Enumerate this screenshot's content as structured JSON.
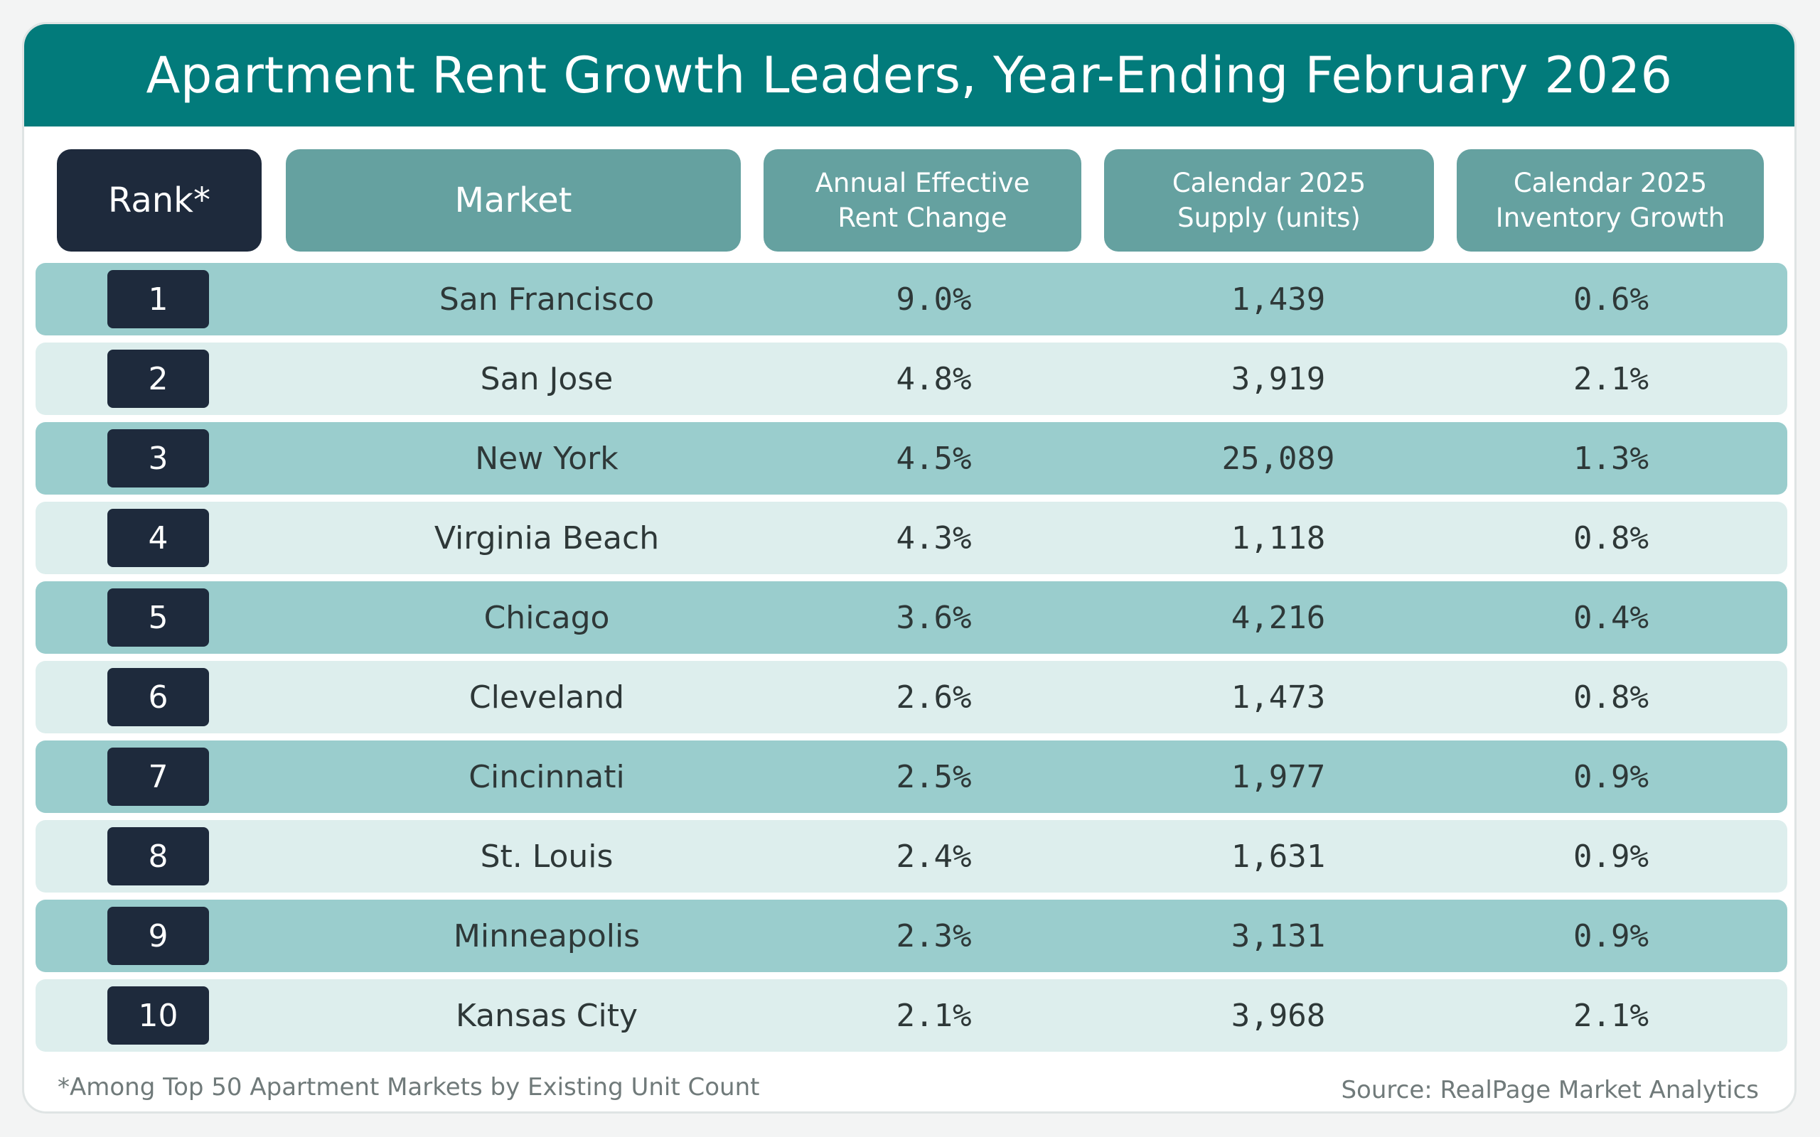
{
  "title": "Apartment Rent Growth Leaders, Year-Ending February 2026",
  "columns": {
    "rank": "Rank*",
    "market": "Market",
    "rent_change": "Annual Effective\nRent Change",
    "supply": "Calendar 2025\nSupply (units)",
    "inventory": "Calendar 2025\nInventory Growth"
  },
  "rows": [
    {
      "rank": "1",
      "market": "San Francisco",
      "rent_change": "9.0%",
      "supply": "1,439",
      "inventory": "0.6%"
    },
    {
      "rank": "2",
      "market": "San Jose",
      "rent_change": "4.8%",
      "supply": "3,919",
      "inventory": "2.1%"
    },
    {
      "rank": "3",
      "market": "New York",
      "rent_change": "4.5%",
      "supply": "25,089",
      "inventory": "1.3%"
    },
    {
      "rank": "4",
      "market": "Virginia Beach",
      "rent_change": "4.3%",
      "supply": "1,118",
      "inventory": "0.8%"
    },
    {
      "rank": "5",
      "market": "Chicago",
      "rent_change": "3.6%",
      "supply": "4,216",
      "inventory": "0.4%"
    },
    {
      "rank": "6",
      "market": "Cleveland",
      "rent_change": "2.6%",
      "supply": "1,473",
      "inventory": "0.8%"
    },
    {
      "rank": "7",
      "market": "Cincinnati",
      "rent_change": "2.5%",
      "supply": "1,977",
      "inventory": "0.9%"
    },
    {
      "rank": "8",
      "market": "St. Louis",
      "rent_change": "2.4%",
      "supply": "1,631",
      "inventory": "0.9%"
    },
    {
      "rank": "9",
      "market": "Minneapolis",
      "rent_change": "2.3%",
      "supply": "3,131",
      "inventory": "0.9%"
    },
    {
      "rank": "10",
      "market": "Kansas City",
      "rent_change": "2.1%",
      "supply": "3,968",
      "inventory": "2.1%"
    }
  ],
  "footnote": "*Among Top 50 Apartment Markets by Existing Unit Count",
  "source": "Source: RealPage Market Analytics",
  "colors": {
    "title_bar": "#027b7b",
    "header_teal": "#65a1a0",
    "header_dark": "#1e2a3c",
    "row_odd": "#9acdcd",
    "row_even": "#ddeeed"
  }
}
